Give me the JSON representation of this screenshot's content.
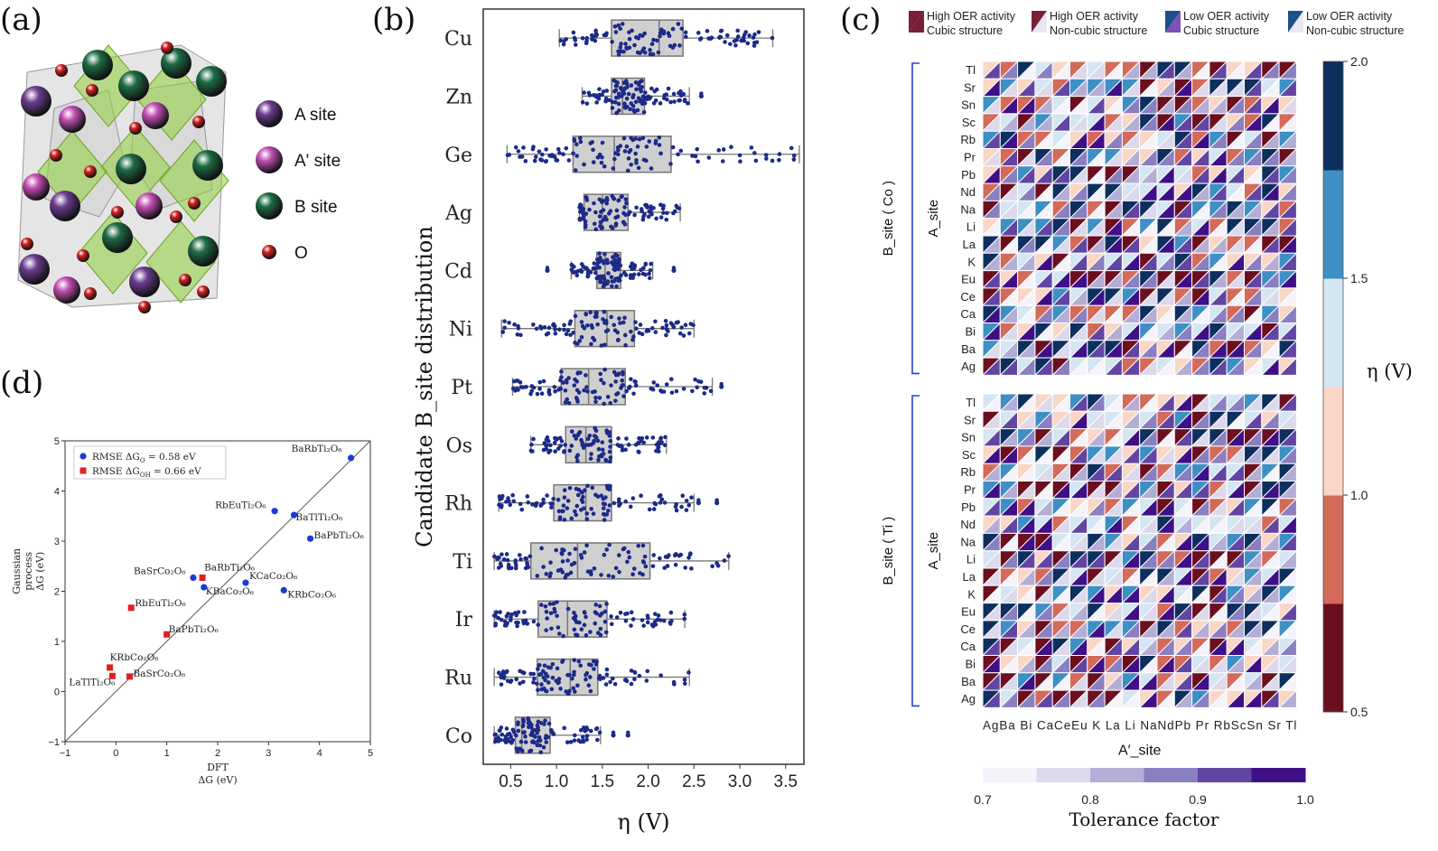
{
  "panel_labels": {
    "a": "(a)",
    "b": "(b)",
    "c": "(c)",
    "d": "(d)"
  },
  "panel_a": {
    "legend": [
      {
        "label": "A site",
        "color": "#6a3d8f"
      },
      {
        "label": "A' site",
        "color": "#c44fb4"
      },
      {
        "label": "B site",
        "color": "#1e6b45"
      },
      {
        "label": "O",
        "color": "#d62020"
      }
    ]
  },
  "chart_data": [
    {
      "id": "b",
      "type": "box-swarm",
      "orientation": "horizontal",
      "categories": [
        "Cu",
        "Zn",
        "Ge",
        "Ag",
        "Cd",
        "Ni",
        "Pt",
        "Os",
        "Rh",
        "Ti",
        "Ir",
        "Ru",
        "Co"
      ],
      "boxes": [
        {
          "q1": 1.6,
          "median": 2.12,
          "q3": 2.38,
          "whislo": 1.03,
          "whishi": 3.36
        },
        {
          "q1": 1.6,
          "median": 1.72,
          "q3": 1.96,
          "whislo": 1.28,
          "whishi": 2.45
        },
        {
          "q1": 1.18,
          "median": 1.63,
          "q3": 2.25,
          "whislo": 0.46,
          "whishi": 3.65
        },
        {
          "q1": 1.3,
          "median": 1.5,
          "q3": 1.78,
          "whislo": 1.25,
          "whishi": 2.35
        },
        {
          "q1": 1.44,
          "median": 1.53,
          "q3": 1.7,
          "whislo": 1.16,
          "whishi": 2.05
        },
        {
          "q1": 1.2,
          "median": 1.55,
          "q3": 1.85,
          "whislo": 0.4,
          "whishi": 2.5
        },
        {
          "q1": 1.05,
          "median": 1.35,
          "q3": 1.75,
          "whislo": 0.52,
          "whishi": 2.7
        },
        {
          "q1": 1.1,
          "median": 1.32,
          "q3": 1.6,
          "whislo": 0.72,
          "whishi": 2.2
        },
        {
          "q1": 0.97,
          "median": 1.32,
          "q3": 1.6,
          "whislo": 0.37,
          "whishi": 2.5
        },
        {
          "q1": 0.72,
          "median": 1.23,
          "q3": 2.02,
          "whislo": 0.32,
          "whishi": 2.88
        },
        {
          "q1": 0.8,
          "median": 1.12,
          "q3": 1.55,
          "whislo": 0.32,
          "whishi": 2.4
        },
        {
          "q1": 0.79,
          "median": 1.15,
          "q3": 1.45,
          "whislo": 0.32,
          "whishi": 2.45
        },
        {
          "q1": 0.55,
          "median": 0.62,
          "q3": 0.93,
          "whislo": 0.32,
          "whishi": 1.48
        }
      ],
      "outliers": [
        [],
        [
          2.58
        ],
        [],
        [],
        [
          0.9,
          2.28
        ],
        [],
        [
          2.8
        ],
        [],
        [
          2.55,
          2.75
        ],
        [],
        [],
        [],
        [
          1.62,
          1.78
        ]
      ],
      "xlim": [
        0.2,
        3.7
      ],
      "xticks": [
        "0.5",
        "1.0",
        "1.5",
        "2.0",
        "2.5",
        "3.0",
        "3.5"
      ],
      "xtick_values": [
        0.5,
        1.0,
        1.5,
        2.0,
        2.5,
        3.0,
        3.5
      ],
      "xlabel": "η (V)",
      "ylabel": "Candidate B_site distribution"
    },
    {
      "id": "c",
      "type": "heatmap",
      "a_sites": [
        "Tl",
        "Sr",
        "Sn",
        "Sc",
        "Rb",
        "Pr",
        "Pb",
        "Nd",
        "Na",
        "Li",
        "La",
        "K",
        "Eu",
        "Ce",
        "Ca",
        "Bi",
        "Ba",
        "Ag"
      ],
      "a_prime_sites": [
        "Ag",
        "Ba",
        "Bi",
        "Ca",
        "Ce",
        "Eu",
        "K",
        "La",
        "Li",
        "Na",
        "Nd",
        "Pb",
        "Pr",
        "Rb",
        "Sc",
        "Sn",
        "Sr",
        "Tl"
      ],
      "xtick_text": "AgBa Bi CaCeEu K La Li NaNdPb Pr RbScSn Sr Tl",
      "xlabel": "A′_site",
      "blocks": [
        {
          "label": "B_site ( Co )",
          "ylabel": "A_site"
        },
        {
          "label": "B_site ( Ti )",
          "ylabel": "A_site"
        }
      ],
      "legend": [
        {
          "line1": "High OER activity",
          "line2": "Cubic structure",
          "fill": "#7a1e3a",
          "fill2": "#7a1e3a",
          "cubic": true
        },
        {
          "line1": "High OER activity",
          "line2": "Non-cubic structure",
          "fill": "#7a1e3a",
          "fill2": "#e8e6f2",
          "cubic": false
        },
        {
          "line1": "Low OER activity",
          "line2": "Cubic structure",
          "fill": "#1f4f8a",
          "fill2": "#7a52b8",
          "cubic": true
        },
        {
          "line1": "Low OER activity",
          "line2": "Non-cubic structure",
          "fill": "#1f4f8a",
          "fill2": "#eae6f4",
          "cubic": false
        }
      ],
      "eta_colorbar": {
        "label": "η (V)",
        "ticks": [
          "0.5",
          "1.0",
          "1.5",
          "2.0"
        ],
        "colors": [
          "#6b0f1e",
          "#d36a5a",
          "#f9d6c5",
          "#d4e6f2",
          "#3e8fc4",
          "#0c2f5e"
        ]
      },
      "tolerance_colorbar": {
        "label": "Tolerance factor",
        "ticks": [
          "0.7",
          "0.8",
          "0.9",
          "1.0"
        ],
        "colors": [
          "#f5f3fa",
          "#dcd9ec",
          "#b4aed6",
          "#8a7fc0",
          "#6245a3",
          "#3f0f88"
        ]
      },
      "eta_palette": [
        "#6b0f1e",
        "#d36a5a",
        "#f9d6c5",
        "#d4e6f2",
        "#3e8fc4",
        "#0c2f5e"
      ],
      "tol_palette": [
        "#f5f3fa",
        "#dcd9ec",
        "#b4aed6",
        "#8a7fc0",
        "#6245a3",
        "#3f0f88"
      ]
    },
    {
      "id": "d",
      "type": "scatter",
      "xlim": [
        -1,
        5
      ],
      "ylim": [
        -1,
        5
      ],
      "xticks": [
        "−1",
        "0",
        "1",
        "2",
        "3",
        "4",
        "5"
      ],
      "yticks": [
        "−1",
        "0",
        "1",
        "2",
        "3",
        "4",
        "5"
      ],
      "tick_values": [
        -1,
        0,
        1,
        2,
        3,
        4,
        5
      ],
      "xlabel_line1": "DFT",
      "xlabel_line2": "ΔG  (eV)",
      "ylabel_line1": "Gaussian",
      "ylabel_line2": "process",
      "ylabel_line3": "ΔG   (eV)",
      "legend": [
        {
          "label": "RMSE ΔG",
          "sub": "O",
          "tail": " = 0.58 eV",
          "color": "#1a3bd6",
          "marker": "circle"
        },
        {
          "label": "RMSE ΔG",
          "sub": "OH",
          "tail": " = 0.66 eV",
          "color": "#e02020",
          "marker": "square"
        }
      ],
      "series": [
        {
          "marker": "circle",
          "color": "#1a3bd6",
          "points": [
            {
              "x": 4.62,
              "y": 4.66,
              "label": "BaRbTi₂O₆",
              "lx": -66,
              "ly": -7
            },
            {
              "x": 3.12,
              "y": 3.6,
              "label": "RbEuTi₂O₆",
              "lx": -66,
              "ly": -3
            },
            {
              "x": 3.5,
              "y": 3.52,
              "label": "BaTlTi₂O₆",
              "lx": 2,
              "ly": 6
            },
            {
              "x": 3.82,
              "y": 3.05,
              "label": "BaPbTi₂O₆",
              "lx": 4,
              "ly": 0
            },
            {
              "x": 1.52,
              "y": 2.27,
              "label": "BaSrCo₂O₆",
              "lx": -66,
              "ly": -4
            },
            {
              "x": 1.73,
              "y": 2.08,
              "label": "KBaCo₂O₆",
              "lx": 2,
              "ly": 8
            },
            {
              "x": 2.55,
              "y": 2.17,
              "label": "KCaCo₂O₆",
              "lx": 4,
              "ly": -4
            },
            {
              "x": 3.3,
              "y": 2.02,
              "label": "KRbCo₂O₆",
              "lx": 4,
              "ly": 8
            }
          ]
        },
        {
          "marker": "square",
          "color": "#e02020",
          "points": [
            {
              "x": 1.7,
              "y": 2.27,
              "label": "BaRbTi₂O₆",
              "lx": 2,
              "ly": -8
            },
            {
              "x": 0.3,
              "y": 1.67,
              "label": "RbEuTi₂O₆",
              "lx": 4,
              "ly": -2
            },
            {
              "x": 1.0,
              "y": 1.14,
              "label": "BaPbTi₂O₆",
              "lx": 2,
              "ly": -2
            },
            {
              "x": -0.12,
              "y": 0.48,
              "label": "KRbCo₂O₆",
              "lx": 0,
              "ly": -8
            },
            {
              "x": -0.07,
              "y": 0.31,
              "label": "LaTlTi₂O₆",
              "lx": -48,
              "ly": 10
            },
            {
              "x": 0.27,
              "y": 0.3,
              "label": "BaSrCo₂O₆",
              "lx": 4,
              "ly": 0
            }
          ]
        }
      ]
    }
  ]
}
